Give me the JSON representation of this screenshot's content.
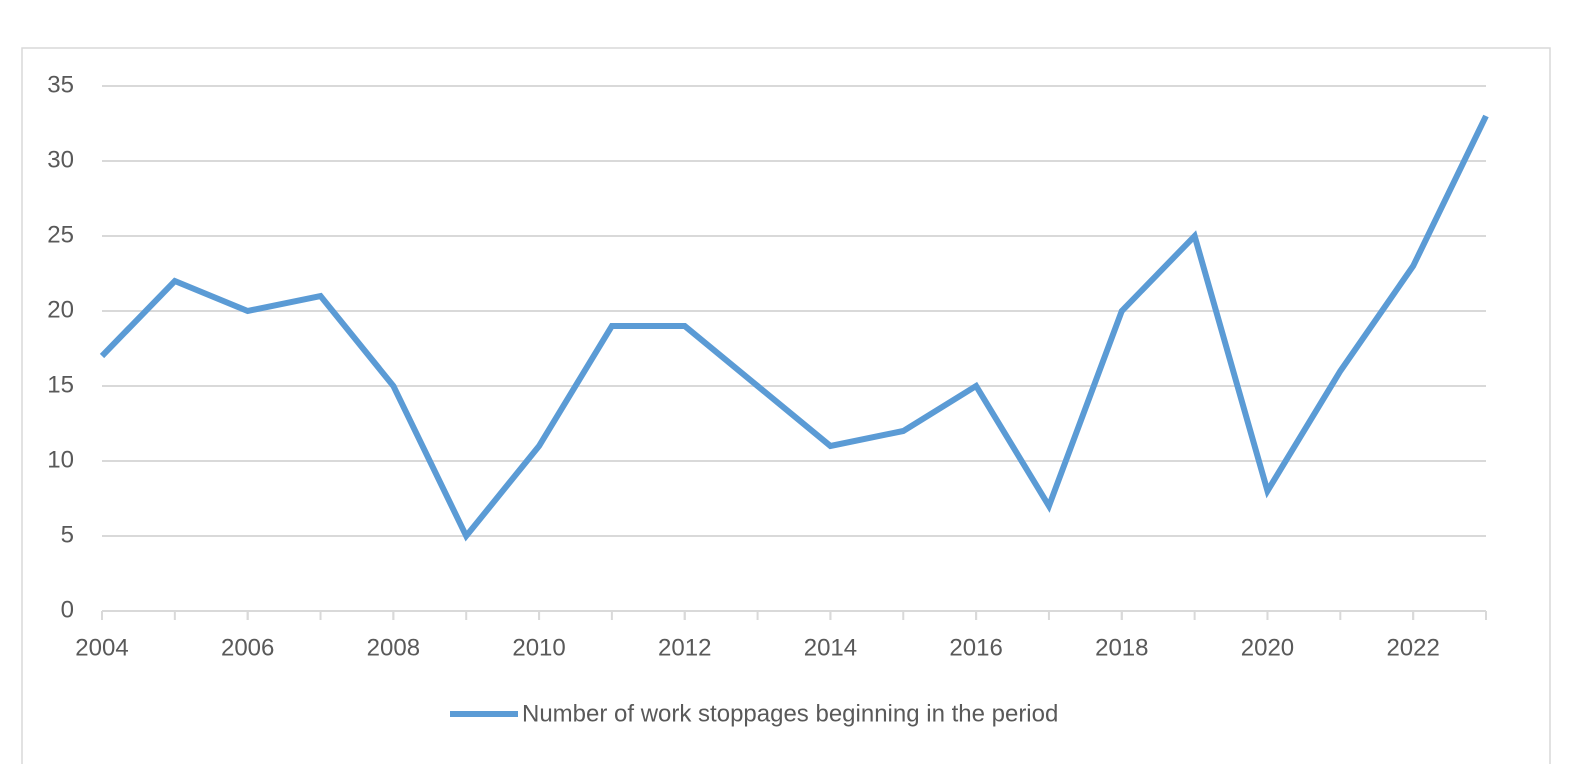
{
  "chart_data": {
    "type": "line",
    "x": [
      2004,
      2005,
      2006,
      2007,
      2008,
      2009,
      2010,
      2011,
      2012,
      2013,
      2014,
      2015,
      2016,
      2017,
      2018,
      2019,
      2020,
      2021,
      2022,
      2023
    ],
    "series": [
      {
        "name": "Number of work stoppages beginning in the period",
        "color": "#5b9bd5",
        "values": [
          17,
          22,
          20,
          21,
          15,
          5,
          11,
          19,
          19,
          15,
          11,
          12,
          15,
          7,
          20,
          25,
          8,
          16,
          23,
          33
        ]
      }
    ],
    "xlim": [
      2004,
      2023
    ],
    "xticks": [
      2004,
      2006,
      2008,
      2010,
      2012,
      2014,
      2016,
      2018,
      2020,
      2022
    ],
    "ylim": [
      0,
      35
    ],
    "yticks": [
      0,
      5,
      10,
      15,
      20,
      25,
      30,
      35
    ],
    "grid": true,
    "legend": "bottom"
  }
}
